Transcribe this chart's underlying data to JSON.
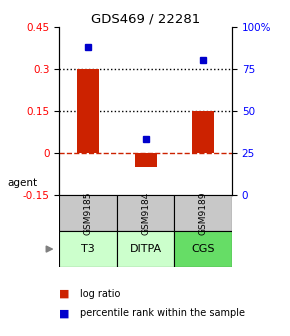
{
  "title": "GDS469 / 22281",
  "categories": [
    "T3",
    "DITPA",
    "CGS"
  ],
  "gsm_labels": [
    "GSM9185",
    "GSM9184",
    "GSM9189"
  ],
  "log_ratios": [
    0.3,
    -0.05,
    0.15
  ],
  "percentile_ranks": [
    0.88,
    0.33,
    0.8
  ],
  "ylim_left": [
    -0.15,
    0.45
  ],
  "ylim_right": [
    0.0,
    1.0
  ],
  "bar_color": "#cc2200",
  "dot_color": "#0000cc",
  "zero_line_color": "#cc2200",
  "cell_bg_gray": "#c8c8c8",
  "cell_bg_green_light": "#ccffcc",
  "cell_bg_green": "#66dd66",
  "agent_label": "agent",
  "legend_log": "log ratio",
  "legend_pct": "percentile rank within the sample",
  "left_yticks": [
    -0.15,
    0.0,
    0.15,
    0.3,
    0.45
  ],
  "right_yticks": [
    0.0,
    0.25,
    0.5,
    0.75,
    1.0
  ],
  "right_yticklabels": [
    "0",
    "25",
    "50",
    "75",
    "100%"
  ],
  "dotted_lines": [
    0.15,
    0.3
  ]
}
